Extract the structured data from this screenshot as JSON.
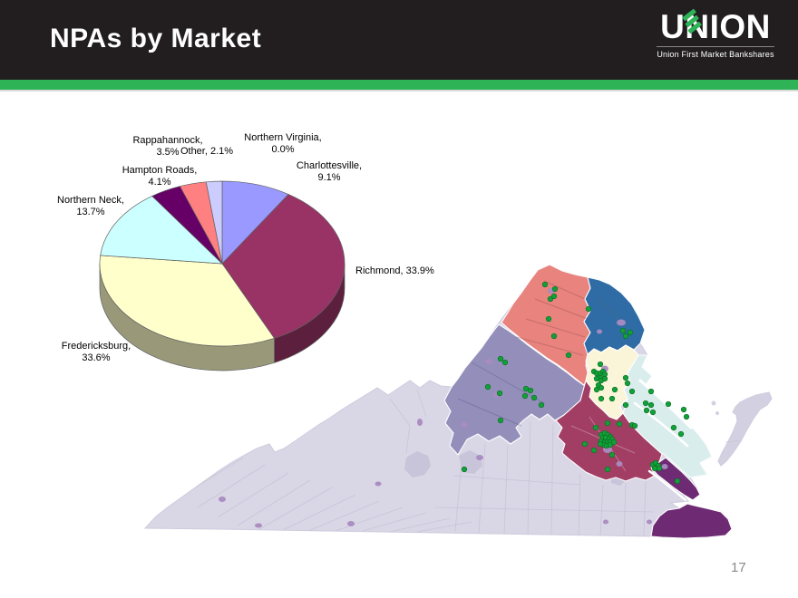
{
  "slide": {
    "title": "NPAs by Market",
    "page_number": "17"
  },
  "logo": {
    "brand": "UNION",
    "tagline": "Union First Market Bankshares"
  },
  "colors": {
    "header_bg": "#221E1F",
    "accent_green": "#2EB457",
    "title_text": "#FFFFFF",
    "page_number_text": "#8A8A8A"
  },
  "chart_data": {
    "type": "pie",
    "style": "3d",
    "title": "NPAs by Market",
    "start_angle_deg": 0,
    "direction": "clockwise",
    "legend_position": "none",
    "slices": [
      {
        "label": "Charlottesville",
        "value": 9.1,
        "color": "#9999FF",
        "display": "Charlottesville,\n9.1%"
      },
      {
        "label": "Richmond",
        "value": 33.9,
        "color": "#993366",
        "display": "Richmond, 33.9%"
      },
      {
        "label": "Fredericksburg",
        "value": 33.6,
        "color": "#FFFFCC",
        "display": "Fredericksburg,\n33.6%"
      },
      {
        "label": "Northern Neck",
        "value": 13.7,
        "color": "#CCFFFF",
        "display": "Northern Neck,\n13.7%"
      },
      {
        "label": "Hampton Roads",
        "value": 4.1,
        "color": "#660066",
        "display": "Hampton Roads,\n4.1%"
      },
      {
        "label": "Rappahannock",
        "value": 3.5,
        "color": "#FF8080",
        "display": "Rappahannock,\n3.5%"
      },
      {
        "label": "Northern Virginia",
        "value": 0.0,
        "color": "#0066CC",
        "display": "Northern Virginia,\n0.0%"
      },
      {
        "label": "Other",
        "value": 2.1,
        "color": "#CCCCFF",
        "display": "Other, 2.1%"
      }
    ]
  },
  "map": {
    "region": "Virginia markets with branch locations",
    "region_colors": {
      "base": "#D9D6E6",
      "base_dark": "#C8C4D9",
      "rappahannock": "#E8837E",
      "northern_virginia": "#2F6CA5",
      "charlottesville": "#938FBA",
      "fredericksburg": "#FAF5D8",
      "northern_neck": "#D9EDEC",
      "richmond": "#A23E63",
      "hampton_roads": "#6E2B73",
      "eastern_shore": "#D3D0E2",
      "city": "#A98BC0",
      "branch_dot": "#12A038",
      "branch_dot_edge": "#0A6B25",
      "county_line": "#C4C0D4",
      "state_edge": "#CFCBDD"
    }
  }
}
